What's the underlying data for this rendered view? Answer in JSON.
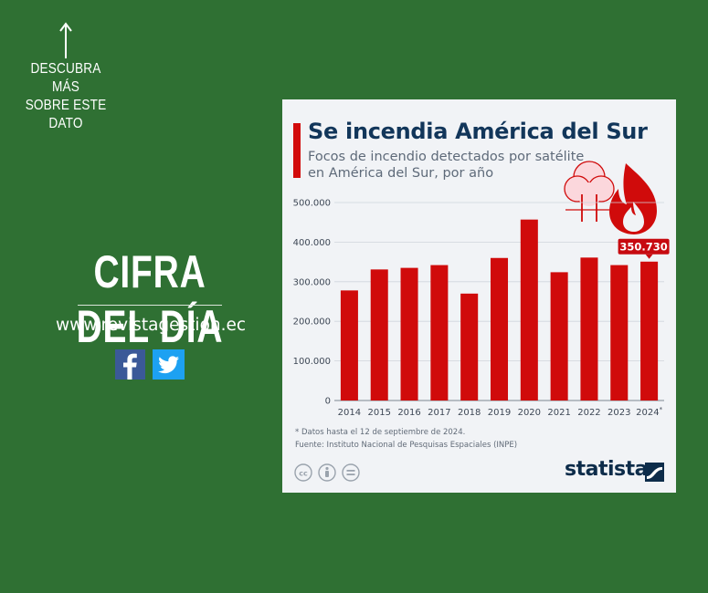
{
  "page": {
    "cta_lines": [
      "DESCUBRA MÁS",
      "SOBRE ESTE",
      "DATO"
    ],
    "headline": "CIFRA DEL DÍA",
    "website": "www.revistagestion.ec",
    "social": [
      "facebook-icon",
      "twitter-icon"
    ]
  },
  "infographic": {
    "title": "Se incendia América del Sur",
    "subtitle_lines": [
      "Focos de incendio detectados por satélite",
      "en América del Sur, por año"
    ],
    "footnote": "* Datos hasta el 12 de septiembre de 2024.",
    "source": "Fuente: Instituto Nacional de Pesquisas Espaciales (INPE)",
    "brand": "statista"
  },
  "chart_data": {
    "type": "bar",
    "title": "Se incendia América del Sur",
    "subtitle": "Focos de incendio detectados por satélite en América del Sur, por año",
    "categories": [
      "2014",
      "2015",
      "2016",
      "2017",
      "2018",
      "2019",
      "2020",
      "2021",
      "2022",
      "2023",
      "2024*"
    ],
    "values": [
      278000,
      331000,
      335000,
      342000,
      270000,
      360000,
      457000,
      324000,
      361000,
      342000,
      350730
    ],
    "ylim": [
      0,
      500000
    ],
    "yticks": [
      0,
      100000,
      200000,
      300000,
      400000,
      500000
    ],
    "ytick_labels": [
      "0",
      "100.000",
      "200.000",
      "300.000",
      "400.000",
      "500.000"
    ],
    "highlight": {
      "index": 10,
      "label": "350.730"
    },
    "grid": true,
    "bar_color": "#d00b0b",
    "legend": "none"
  },
  "colors": {
    "background": "#2f7033",
    "card": "#f1f3f6",
    "accent_red": "#d00b0b",
    "title_navy": "#12365a"
  }
}
